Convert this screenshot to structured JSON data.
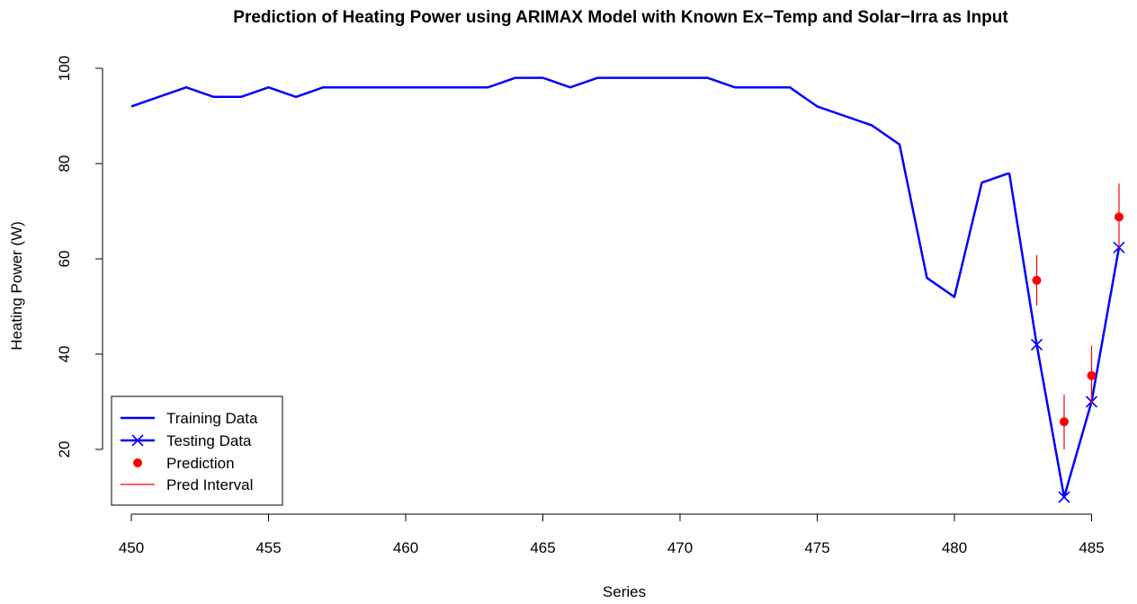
{
  "chart_data": {
    "type": "line",
    "title": "Prediction of Heating Power using ARIMAX Model with Known Ex−Temp and Solar−Irra as Input",
    "xlabel": "Series",
    "ylabel": "Heating Power (W)",
    "xlim": [
      450,
      486
    ],
    "ylim": [
      10,
      100
    ],
    "x_ticks": [
      450,
      455,
      460,
      465,
      470,
      475,
      480,
      485
    ],
    "y_ticks": [
      20,
      40,
      60,
      80,
      100
    ],
    "legend_position": "bottom-left",
    "grid": false,
    "series": [
      {
        "name": "Training Data",
        "kind": "line",
        "color": "#0000ff",
        "x": [
          450,
          451,
          452,
          453,
          454,
          455,
          456,
          457,
          458,
          459,
          460,
          461,
          462,
          463,
          464,
          465,
          466,
          467,
          468,
          469,
          470,
          471,
          472,
          473,
          474,
          475,
          476,
          477,
          478,
          479,
          480,
          481,
          482
        ],
        "y": [
          92,
          94,
          96,
          94,
          94,
          96,
          94,
          96,
          96,
          96,
          96,
          96,
          96,
          96,
          98,
          98,
          96,
          98,
          98,
          98,
          98,
          98,
          96,
          96,
          96,
          92,
          90,
          88,
          84,
          56,
          52,
          76,
          78
        ]
      },
      {
        "name": "Testing Data",
        "kind": "line+x-markers",
        "color": "#0000ff",
        "line_from": [
          482,
          78
        ],
        "x": [
          483,
          484,
          485,
          486
        ],
        "y": [
          42,
          10,
          30,
          62.4
        ]
      },
      {
        "name": "Prediction",
        "kind": "points",
        "color": "#ff0000",
        "x": [
          483,
          484,
          485,
          486
        ],
        "y": [
          55.5,
          25.8,
          35.5,
          68.8
        ]
      },
      {
        "name": "Pred Interval",
        "kind": "error-bars",
        "color": "#ff0000",
        "x": [
          483,
          484,
          485,
          486
        ],
        "lower": [
          50.2,
          20.0,
          29.5,
          62.4
        ],
        "upper": [
          60.8,
          31.5,
          41.8,
          75.8
        ]
      }
    ]
  }
}
